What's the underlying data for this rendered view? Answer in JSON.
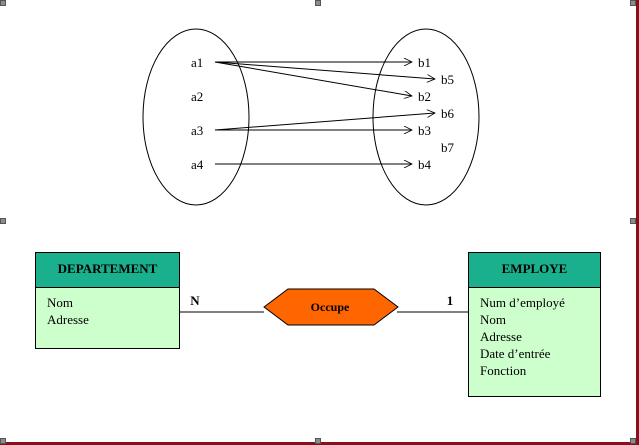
{
  "mapping": {
    "set_a": [
      "a1",
      "a2",
      "a3",
      "a4"
    ],
    "set_b": [
      "b1",
      "b5",
      "b2",
      "b6",
      "b3",
      "b7",
      "b4"
    ],
    "arrows": [
      {
        "from": "a1",
        "to": "b1"
      },
      {
        "from": "a1",
        "to": "b5"
      },
      {
        "from": "a1",
        "to": "b2"
      },
      {
        "from": "a3",
        "to": "b6"
      },
      {
        "from": "a3",
        "to": "b3"
      },
      {
        "from": "a4",
        "to": "b4"
      }
    ]
  },
  "er": {
    "left_entity": {
      "title": "DEPARTEMENT",
      "attributes": [
        "Nom",
        "Adresse"
      ]
    },
    "right_entity": {
      "title": "EMPLOYE",
      "attributes": [
        "Num d’employé",
        "Nom",
        "Adresse",
        "Date d’entrée",
        "Fonction"
      ]
    },
    "relationship": {
      "label": "Occupe"
    },
    "left_cardinality": "N",
    "right_cardinality": "1"
  },
  "colors": {
    "entity_header": "#1ab08e",
    "entity_body": "#ccffcc",
    "relationship_fill": "#ff6600",
    "frame": "#8b0f1a",
    "handle": "#8c8c8c"
  }
}
